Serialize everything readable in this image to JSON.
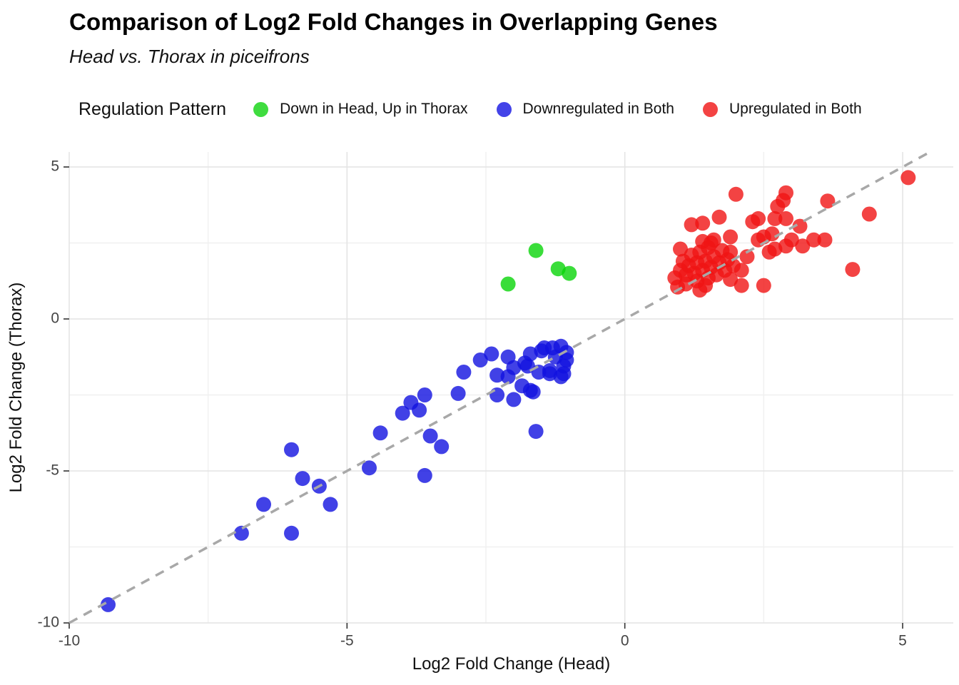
{
  "header": {
    "title": "Comparison of Log2 Fold Changes in Overlapping Genes",
    "subtitle": "Head vs. Thorax in piceifrons"
  },
  "legend": {
    "title": "Regulation Pattern",
    "items": [
      {
        "label": "Down in Head, Up in Thorax",
        "color": "#3fdc3f"
      },
      {
        "label": "Downregulated in Both",
        "color": "#4343e8"
      },
      {
        "label": "Upregulated in Both",
        "color": "#f34343"
      }
    ]
  },
  "chart_data": {
    "type": "scatter",
    "title": "Comparison of Log2 Fold Changes in Overlapping Genes",
    "subtitle": "Head vs. Thorax in piceifrons",
    "xlabel": "Log2 Fold Change (Head)",
    "ylabel": "Log2 Fold Change (Thorax)",
    "xlim": [
      -10.1,
      5.9
    ],
    "ylim": [
      -10.1,
      5.5
    ],
    "xticks": [
      -10,
      -5,
      0,
      5
    ],
    "yticks": [
      -10,
      -5,
      0,
      5
    ],
    "minor_xticks": [
      -7.5,
      -2.5,
      2.5
    ],
    "minor_yticks": [
      -7.5,
      -2.5,
      2.5
    ],
    "grid": true,
    "legend_position": "top",
    "identity_line": {
      "slope": 1,
      "intercept": 0,
      "style": "dashed",
      "color": "#a8a8a8"
    },
    "point_opacity": 0.8,
    "series": [
      {
        "name": "Down in Head, Up in Thorax",
        "color": "#09d509",
        "points": [
          [
            -2.1,
            1.15
          ],
          [
            -1.6,
            2.25
          ],
          [
            -1.2,
            1.65
          ],
          [
            -1.0,
            1.5
          ]
        ]
      },
      {
        "name": "Downregulated in Both",
        "color": "#1212e0",
        "points": [
          [
            -9.3,
            -9.4
          ],
          [
            -6.9,
            -7.05
          ],
          [
            -6.0,
            -7.05
          ],
          [
            -6.5,
            -6.1
          ],
          [
            -6.0,
            -4.3
          ],
          [
            -5.8,
            -5.25
          ],
          [
            -5.5,
            -5.5
          ],
          [
            -5.3,
            -6.1
          ],
          [
            -4.6,
            -4.9
          ],
          [
            -4.4,
            -3.75
          ],
          [
            -3.6,
            -5.15
          ],
          [
            -3.3,
            -4.2
          ],
          [
            -3.5,
            -3.85
          ],
          [
            -4.0,
            -3.1
          ],
          [
            -3.7,
            -3.0
          ],
          [
            -3.85,
            -2.75
          ],
          [
            -3.6,
            -2.5
          ],
          [
            -3.0,
            -2.45
          ],
          [
            -2.9,
            -1.75
          ],
          [
            -2.6,
            -1.35
          ],
          [
            -1.6,
            -3.7
          ],
          [
            -2.4,
            -1.15
          ],
          [
            -2.3,
            -1.85
          ],
          [
            -2.1,
            -1.25
          ],
          [
            -2.0,
            -1.6
          ],
          [
            -2.1,
            -1.9
          ],
          [
            -2.3,
            -2.5
          ],
          [
            -2.0,
            -2.65
          ],
          [
            -1.8,
            -1.45
          ],
          [
            -1.85,
            -2.2
          ],
          [
            -1.7,
            -1.15
          ],
          [
            -1.7,
            -2.35
          ],
          [
            -1.75,
            -1.55
          ],
          [
            -1.5,
            -1.05
          ],
          [
            -1.45,
            -0.95
          ],
          [
            -1.3,
            -0.95
          ],
          [
            -1.25,
            -1.25
          ],
          [
            -1.15,
            -0.9
          ],
          [
            -1.05,
            -1.35
          ],
          [
            -1.1,
            -1.8
          ],
          [
            -1.35,
            -1.8
          ],
          [
            -1.55,
            -1.75
          ],
          [
            -1.35,
            -1.7
          ],
          [
            -1.1,
            -1.55
          ],
          [
            -1.15,
            -1.9
          ],
          [
            -1.65,
            -2.4
          ],
          [
            -1.05,
            -1.1
          ]
        ]
      },
      {
        "name": "Upregulated in Both",
        "color": "#f01414",
        "points": [
          [
            5.1,
            4.65
          ],
          [
            4.4,
            3.45
          ],
          [
            4.1,
            1.63
          ],
          [
            3.65,
            3.88
          ],
          [
            2.0,
            4.1
          ],
          [
            2.9,
            4.15
          ],
          [
            2.85,
            3.9
          ],
          [
            2.75,
            3.7
          ],
          [
            3.15,
            3.05
          ],
          [
            2.9,
            3.3
          ],
          [
            2.7,
            3.3
          ],
          [
            2.4,
            3.3
          ],
          [
            2.3,
            3.2
          ],
          [
            1.7,
            3.35
          ],
          [
            1.4,
            3.15
          ],
          [
            1.2,
            3.1
          ],
          [
            1.9,
            2.7
          ],
          [
            1.6,
            2.6
          ],
          [
            1.4,
            2.55
          ],
          [
            2.4,
            2.6
          ],
          [
            2.5,
            2.7
          ],
          [
            2.65,
            2.8
          ],
          [
            3.0,
            2.6
          ],
          [
            3.4,
            2.6
          ],
          [
            3.6,
            2.6
          ],
          [
            2.6,
            2.2
          ],
          [
            2.2,
            2.05
          ],
          [
            1.9,
            2.2
          ],
          [
            2.7,
            2.3
          ],
          [
            2.9,
            2.4
          ],
          [
            3.2,
            2.4
          ],
          [
            2.1,
            1.6
          ],
          [
            2.1,
            1.1
          ],
          [
            2.5,
            1.1
          ],
          [
            0.9,
            1.35
          ],
          [
            0.95,
            1.05
          ],
          [
            1.0,
            1.6
          ],
          [
            1.0,
            2.3
          ],
          [
            1.05,
            1.9
          ],
          [
            1.1,
            1.45
          ],
          [
            1.1,
            1.15
          ],
          [
            1.15,
            1.75
          ],
          [
            1.2,
            2.1
          ],
          [
            1.25,
            1.5
          ],
          [
            1.3,
            1.85
          ],
          [
            1.3,
            1.25
          ],
          [
            1.35,
            2.2
          ],
          [
            1.35,
            0.95
          ],
          [
            1.4,
            1.6
          ],
          [
            1.45,
            1.9
          ],
          [
            1.45,
            1.1
          ],
          [
            1.5,
            1.35
          ],
          [
            1.5,
            2.35
          ],
          [
            1.55,
            1.7
          ],
          [
            1.55,
            2.5
          ],
          [
            1.6,
            2.05
          ],
          [
            1.65,
            1.45
          ],
          [
            1.7,
            1.85
          ],
          [
            1.75,
            2.25
          ],
          [
            1.8,
            1.6
          ],
          [
            1.85,
            1.95
          ],
          [
            1.9,
            1.3
          ],
          [
            1.95,
            1.75
          ]
        ]
      }
    ]
  }
}
